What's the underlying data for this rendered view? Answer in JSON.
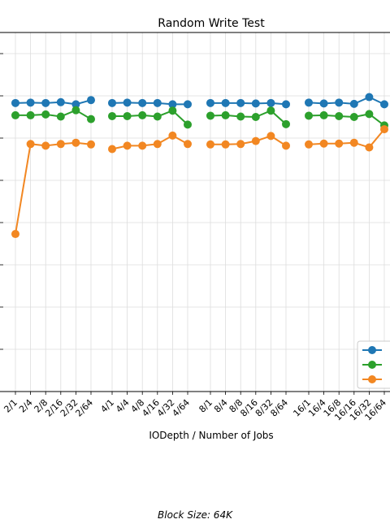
{
  "chart_data": {
    "type": "line",
    "title": "Random Write Test",
    "xlabel": "IODepth / Number of Jobs",
    "ylabel": "",
    "grid": true,
    "legend_position": "lower-right",
    "groups": [
      [
        "2/1",
        "2/4",
        "2/8",
        "2/16",
        "2/32",
        "2/64"
      ],
      [
        "4/1",
        "4/4",
        "4/8",
        "4/16",
        "4/32",
        "4/64"
      ],
      [
        "8/1",
        "8/4",
        "8/8",
        "8/16",
        "8/32",
        "8/64"
      ],
      [
        "16/1",
        "16/4",
        "16/8",
        "16/16",
        "16/32",
        "16/64"
      ]
    ],
    "series": [
      {
        "color": "#1f77b4",
        "values": [
          [
            3.83,
            3.84,
            3.83,
            3.85,
            3.8,
            3.9
          ],
          [
            3.83,
            3.84,
            3.83,
            3.83,
            3.8,
            3.8
          ],
          [
            3.83,
            3.83,
            3.83,
            3.82,
            3.83,
            3.8
          ],
          [
            3.84,
            3.82,
            3.84,
            3.81,
            3.97,
            3.8
          ]
        ]
      },
      {
        "color": "#2ca02c",
        "values": [
          [
            3.54,
            3.54,
            3.56,
            3.51,
            3.66,
            3.45
          ],
          [
            3.52,
            3.52,
            3.54,
            3.51,
            3.65,
            3.32
          ],
          [
            3.53,
            3.54,
            3.51,
            3.5,
            3.65,
            3.33
          ],
          [
            3.53,
            3.54,
            3.52,
            3.5,
            3.57,
            3.3
          ]
        ]
      },
      {
        "color": "#f28722",
        "values": [
          [
            0.73,
            2.86,
            2.82,
            2.86,
            2.89,
            2.85
          ],
          [
            2.74,
            2.82,
            2.82,
            2.86,
            3.06,
            2.86
          ],
          [
            2.85,
            2.85,
            2.86,
            2.93,
            3.05,
            2.82
          ],
          [
            2.85,
            2.87,
            2.87,
            2.89,
            2.78,
            3.21
          ]
        ]
      }
    ],
    "ylim": [
      -3.0,
      5.5
    ],
    "annotation": "Block Size: 64K"
  }
}
